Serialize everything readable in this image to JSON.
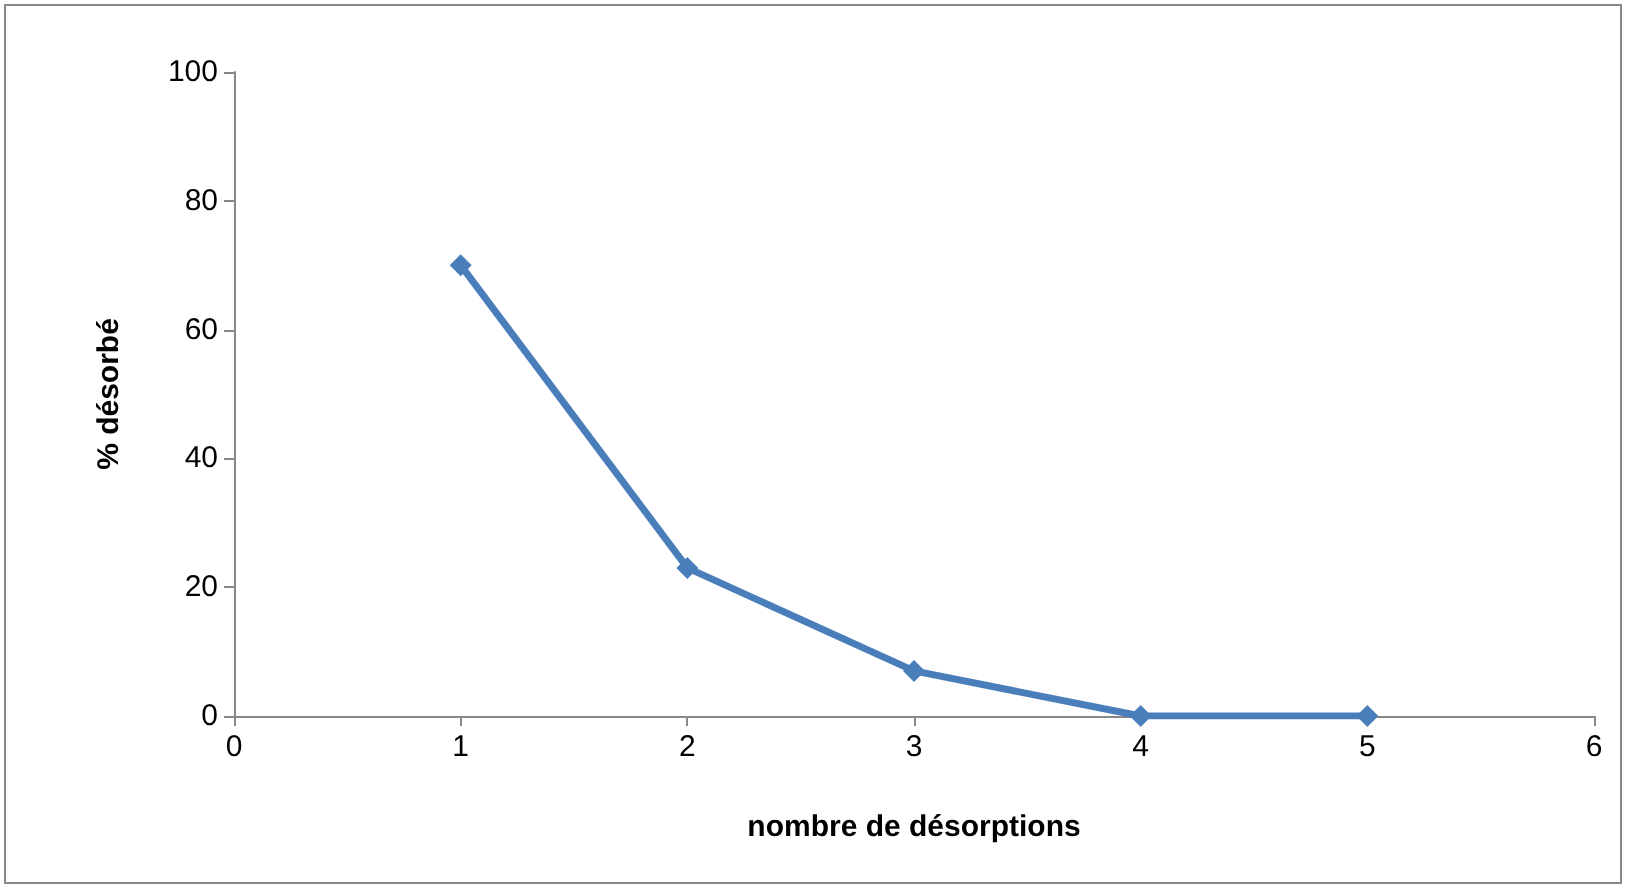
{
  "chart_data": {
    "type": "line",
    "xlabel": "nombre de désorptions",
    "ylabel": "% désorbé",
    "x": [
      1,
      2,
      3,
      4,
      5
    ],
    "series": [
      {
        "color": "#4a7ebb",
        "values": [
          70,
          23,
          7,
          0,
          0
        ]
      }
    ],
    "xlim": [
      0,
      6
    ],
    "xticks": [
      0,
      1,
      2,
      3,
      4,
      5,
      6
    ],
    "ylim": [
      0,
      100
    ],
    "yticks": [
      0,
      20,
      40,
      60,
      80,
      100
    ],
    "grid": false,
    "marker": "diamond",
    "line_style": "solid"
  }
}
